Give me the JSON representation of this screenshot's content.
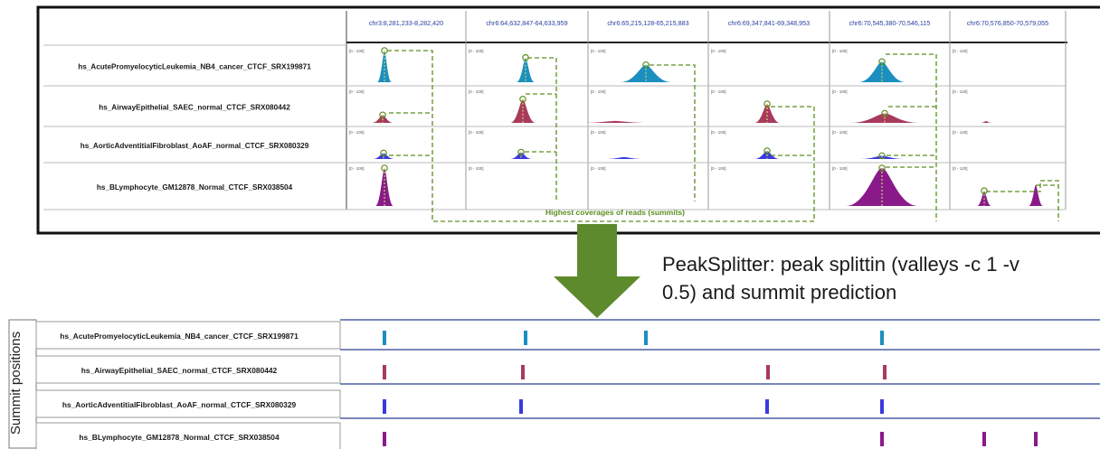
{
  "top_panel": {
    "columns": [
      "chr3:8,281,233-8,282,420",
      "chr6:64,632,847-64,633,959",
      "chr6:65,215,128-65,215,883",
      "chr6:69,347,841-69,348,953",
      "chr6:70,545,380-70,546,115",
      "chr6:70,576,850-70,579,055"
    ],
    "rows": [
      {
        "label": "hs_AcutePromyelocyticLeukemia_NB4_cancer_CTCF_SRX199871",
        "color": "#1b8fc0",
        "heights": [
          1.0,
          0.78,
          0.55,
          0.0,
          0.65,
          0.0
        ]
      },
      {
        "label": "hs_AirwayEpithelial_SAEC_normal_CTCF_SRX080442",
        "color": "#a83a5c",
        "heights": [
          0.25,
          0.75,
          0.06,
          0.6,
          0.3,
          0.02
        ]
      },
      {
        "label": "hs_AorticAdventitialFibroblast_AoAF_normal_CTCF_SRX080329",
        "color": "#3a3ae0",
        "heights": [
          0.22,
          0.25,
          0.07,
          0.3,
          0.12,
          0.0
        ]
      },
      {
        "label": "hs_BLymphocyte_GM12878_Normal_CTCF_SRX038504",
        "color": "#8a1a8a",
        "heights": [
          1.0,
          0.0,
          0.0,
          0.0,
          1.0,
          0.4
        ]
      }
    ],
    "range_label": "[0 - 100]",
    "range_label_alt": "[0 - 120]",
    "summit_label": "Highest coverages of reads (summits)",
    "summit_color": "#5a8f1e"
  },
  "arrow_color": "#5d8a2c",
  "caption": {
    "line1": "PeakSplitter: peak splittin (valleys -c 1 -v",
    "line2": "0.5) and summit prediction"
  },
  "bottom_panel": {
    "axis_label": "Summit positions",
    "rows": [
      {
        "label": "hs_AcutePromyelocyticLeukemia_NB4_cancer_CTCF_SRX199871",
        "color": "#1b8fc0",
        "summits": [
          425,
          581,
          714,
          975
        ]
      },
      {
        "label": "hs_AirwayEpithelial_SAEC_normal_CTCF_SRX080442",
        "color": "#a83a5c",
        "summits": [
          425,
          578,
          849,
          978
        ]
      },
      {
        "label": "hs_AorticAdventitialFibroblast_AoAF_normal_CTCF_SRX080329",
        "color": "#3a3ae0",
        "summits": [
          425,
          576,
          848,
          975
        ]
      },
      {
        "label": "hs_BLymphocyte_GM12878_Normal_CTCF_SRX038504",
        "color": "#8a1a8a",
        "summits": [
          425,
          975,
          1088,
          1145
        ]
      }
    ]
  }
}
